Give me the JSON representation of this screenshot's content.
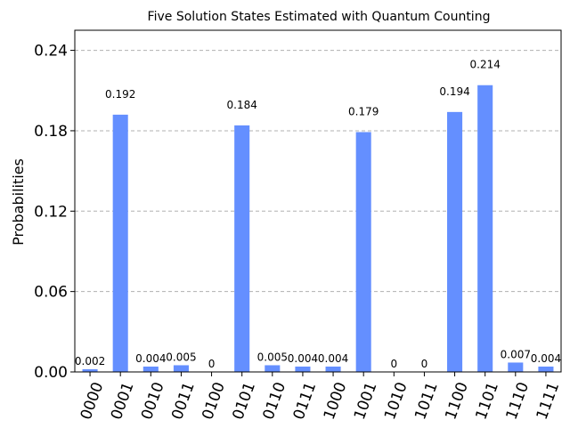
{
  "chart_data": {
    "type": "bar",
    "title": "Five Solution States Estimated with Quantum Counting",
    "xlabel": "",
    "ylabel": "Probabilities",
    "ylim": [
      0,
      0.255
    ],
    "yticks": [
      "0.00",
      "0.06",
      "0.12",
      "0.18",
      "0.24"
    ],
    "ytick_values": [
      0,
      0.06,
      0.12,
      0.18,
      0.24
    ],
    "grid": true,
    "bar_color": "#648fff",
    "categories": [
      "0000",
      "0001",
      "0010",
      "0011",
      "0100",
      "0101",
      "0110",
      "0111",
      "1000",
      "1001",
      "1010",
      "1011",
      "1100",
      "1101",
      "1110",
      "1111"
    ],
    "values": [
      0.002,
      0.192,
      0.004,
      0.005,
      0,
      0.184,
      0.005,
      0.004,
      0.004,
      0.179,
      0,
      0,
      0.194,
      0.214,
      0.007,
      0.004
    ],
    "value_labels": [
      "0.002",
      "0.192",
      "0.004",
      "0.005",
      "0",
      "0.184",
      "0.005",
      "0.004",
      "0.004",
      "0.179",
      "0",
      "0",
      "0.194",
      "0.214",
      "0.007",
      "0.004"
    ]
  }
}
